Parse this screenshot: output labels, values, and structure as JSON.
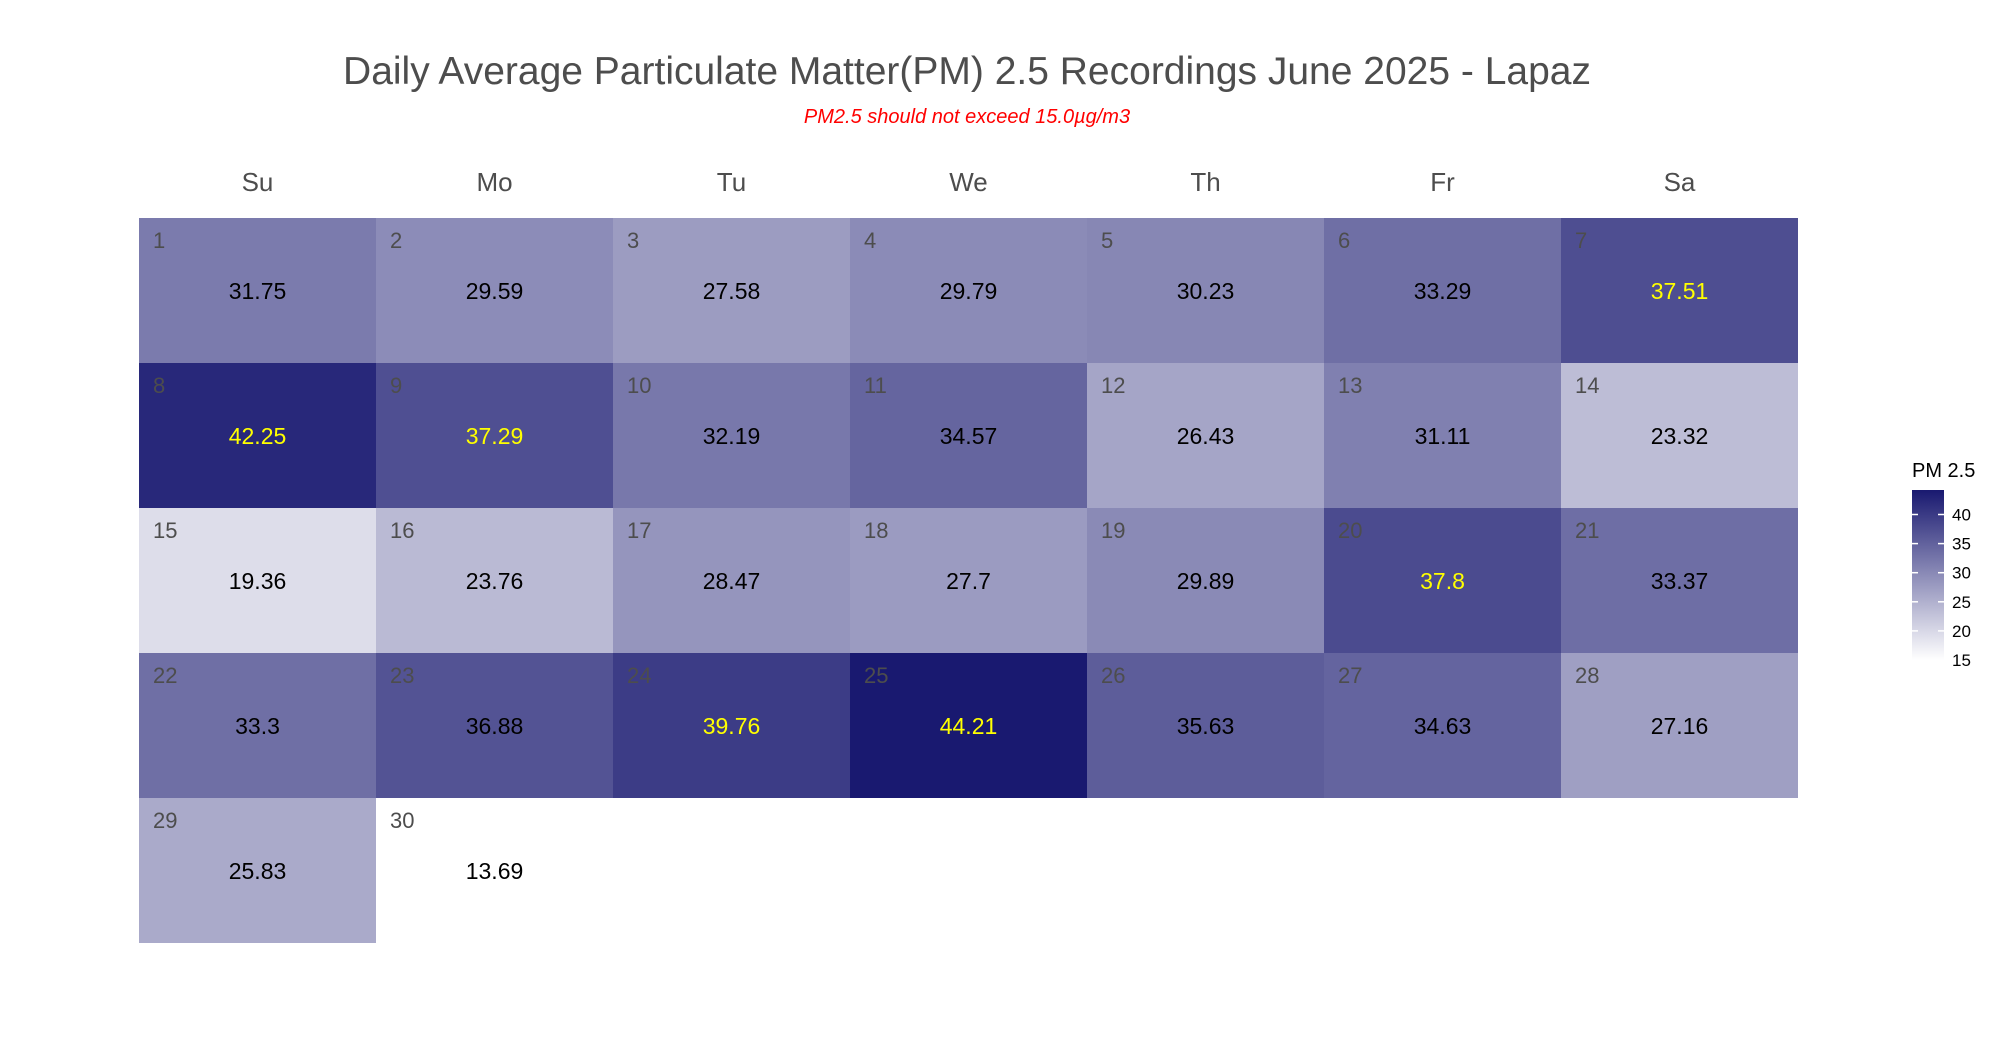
{
  "chart_data": {
    "type": "heatmap",
    "title": "Daily Average Particulate Matter(PM) 2.5 Recordings June 2025 -  Lapaz",
    "subtitle": "PM2.5 should not exceed 15.0µg/m3",
    "weekdays": [
      "Su",
      "Mo",
      "Tu",
      "We",
      "Th",
      "Fr",
      "Sa"
    ],
    "first_weekday_index": 0,
    "days": [
      1,
      2,
      3,
      4,
      5,
      6,
      7,
      8,
      9,
      10,
      11,
      12,
      13,
      14,
      15,
      16,
      17,
      18,
      19,
      20,
      21,
      22,
      23,
      24,
      25,
      26,
      27,
      28,
      29,
      30
    ],
    "values": [
      31.75,
      29.59,
      27.58,
      29.79,
      30.23,
      33.29,
      37.51,
      42.25,
      37.29,
      32.19,
      34.57,
      26.43,
      31.11,
      23.32,
      19.36,
      23.76,
      28.47,
      27.7,
      29.89,
      37.8,
      33.37,
      33.3,
      36.88,
      39.76,
      44.21,
      35.63,
      34.63,
      27.16,
      25.83,
      13.69
    ],
    "value_labels": [
      "31.75",
      "29.59",
      "27.58",
      "29.79",
      "30.23",
      "33.29",
      "37.51",
      "42.25",
      "37.29",
      "32.19",
      "34.57",
      "26.43",
      "31.11",
      "23.32",
      "19.36",
      "23.76",
      "28.47",
      "27.7",
      "29.89",
      "37.8",
      "33.37",
      "33.3",
      "36.88",
      "39.76",
      "44.21",
      "35.63",
      "34.63",
      "27.16",
      "25.83",
      "13.69"
    ],
    "highlight_threshold": 37.0,
    "legend": {
      "title": "PM 2.5",
      "ticks": [
        "15",
        "20",
        "25",
        "30",
        "35",
        "40"
      ],
      "tick_values": [
        15,
        20,
        25,
        30,
        35,
        40
      ],
      "range": [
        15,
        44.21
      ],
      "placement": "right"
    },
    "colors": {
      "low": "#ffffff",
      "high": "#191970",
      "title": "#4d4d4d",
      "subtitle": "#ff0000",
      "label_default": "#000000",
      "label_highlight": "#ffff00",
      "day_number": "#4d4d4d"
    },
    "grid": false
  }
}
